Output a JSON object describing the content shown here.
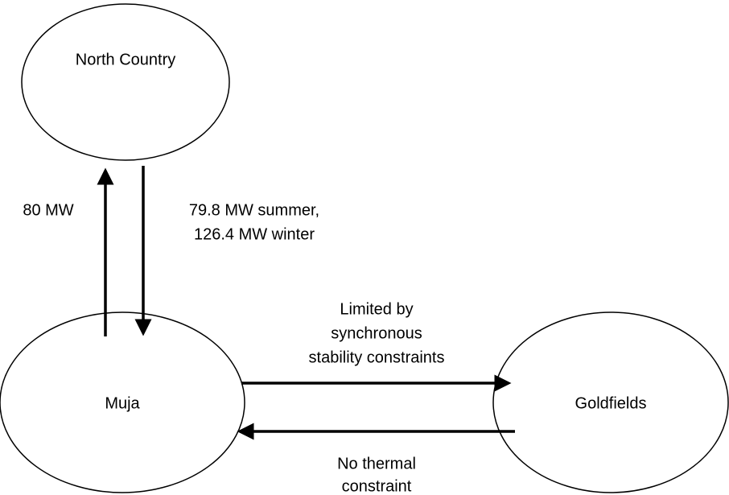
{
  "nodes": [
    {
      "label": "North Country"
    },
    {
      "label": "Muja"
    },
    {
      "label": "Goldfields"
    }
  ],
  "edges": [
    {
      "label": [
        "80 MW"
      ]
    },
    {
      "label": [
        "79.8 MW summer,",
        "126.4 MW winter"
      ]
    },
    {
      "label": [
        "Limited by",
        "synchronous",
        "stability constraints"
      ]
    },
    {
      "label": [
        "No thermal",
        "constraint"
      ]
    }
  ]
}
